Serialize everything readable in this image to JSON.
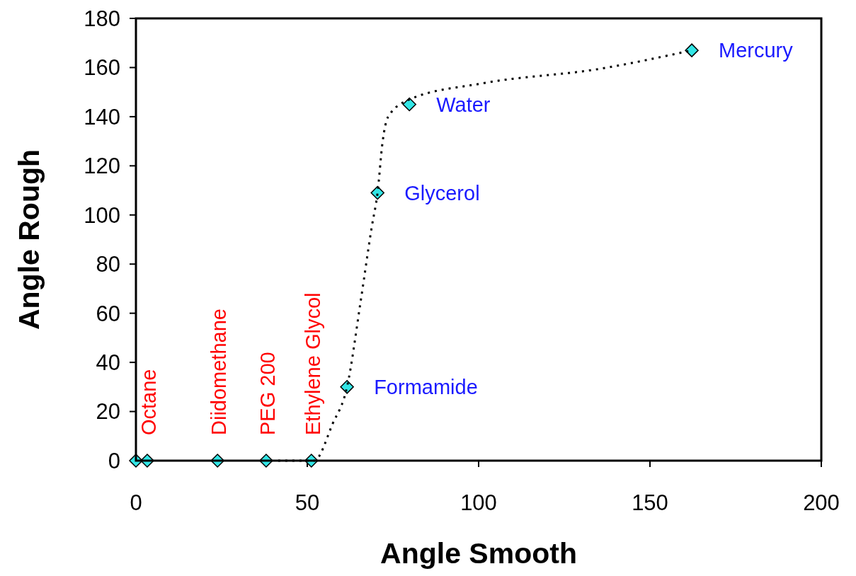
{
  "chart_data": {
    "type": "scatter",
    "xlabel": "Angle Smooth",
    "ylabel": "Angle Rough",
    "xlim": [
      0,
      200
    ],
    "xticks": [
      0,
      50,
      100,
      150,
      200
    ],
    "ylim": [
      0,
      180
    ],
    "yticks": [
      0,
      20,
      40,
      60,
      80,
      100,
      120,
      140,
      160,
      180
    ],
    "marker": "diamond",
    "series": [
      {
        "color": "#33e6e6",
        "x": [
          0,
          3.3,
          23.8,
          38,
          51.2,
          61.6,
          70.5,
          79.8,
          162.2
        ],
        "values": [
          0,
          0,
          0,
          0,
          0,
          30,
          109,
          145,
          167
        ]
      },
      {
        "type": "line",
        "color": "#000000",
        "line_style": "dotted",
        "marker": "none",
        "x": [
          41.5,
          47,
          52,
          57.4,
          61.6,
          65.7,
          68.8,
          70.5,
          72,
          73.6,
          79.8,
          100.8,
          135.9,
          162.2
        ],
        "values": [
          0,
          0,
          0,
          15,
          30,
          66,
          95,
          109,
          130,
          140,
          147,
          153.5,
          159.6,
          167
        ]
      }
    ],
    "annotations": [
      {
        "text": "Octane",
        "x": 3.3,
        "y": 0
      },
      {
        "text": "Diidomethane",
        "x": 23.8,
        "y": 0
      },
      {
        "text": "PEG 200",
        "x": 38,
        "y": 0
      },
      {
        "text": "Ethylene Glycol",
        "x": 51.2,
        "y": 0
      },
      {
        "text": "Formamide",
        "x": 61.6,
        "y": 30
      },
      {
        "text": "Glycerol",
        "x": 70.5,
        "y": 109
      },
      {
        "text": "Water",
        "x": 79.8,
        "y": 145
      },
      {
        "text": "Mercury",
        "x": 162.2,
        "y": 167
      }
    ]
  }
}
